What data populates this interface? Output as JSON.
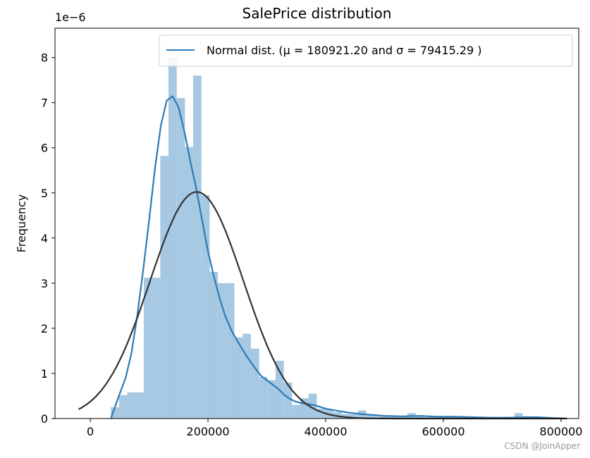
{
  "chart_data": {
    "type": "histogram",
    "title": "SalePrice distribution",
    "xlabel": "",
    "ylabel": "Frequency",
    "y_scale_label": "1e−6",
    "xlim": [
      -60000,
      830000
    ],
    "ylim": [
      0,
      8.65
    ],
    "x_ticks": [
      0,
      200000,
      400000,
      600000,
      800000
    ],
    "x_tick_labels": [
      "0",
      "200000",
      "400000",
      "600000",
      "800000"
    ],
    "y_ticks": [
      0,
      1,
      2,
      3,
      4,
      5,
      6,
      7,
      8
    ],
    "y_tick_labels": [
      "0",
      "1",
      "2",
      "3",
      "4",
      "5",
      "6",
      "7",
      "8"
    ],
    "grid": false,
    "legend": {
      "position": "top-right",
      "entries": [
        "Normal dist. (μ =  180921.20 and σ =  79415.29 )"
      ]
    },
    "histogram": {
      "bin_width": 14000,
      "bins": [
        [
          34900,
          0.25
        ],
        [
          48900,
          0.52
        ],
        [
          62900,
          0.58
        ],
        [
          76900,
          0.58
        ],
        [
          90900,
          3.12
        ],
        [
          104900,
          3.12
        ],
        [
          118900,
          5.82
        ],
        [
          132900,
          8.0
        ],
        [
          146900,
          7.1
        ],
        [
          160900,
          6.02
        ],
        [
          174900,
          7.6
        ],
        [
          188900,
          4.95
        ],
        [
          202900,
          3.25
        ],
        [
          216900,
          3.0
        ],
        [
          230900,
          3.0
        ],
        [
          244900,
          1.8
        ],
        [
          258900,
          1.88
        ],
        [
          272900,
          1.55
        ],
        [
          286900,
          0.92
        ],
        [
          300900,
          0.85
        ],
        [
          314900,
          1.28
        ],
        [
          328900,
          0.8
        ],
        [
          342900,
          0.3
        ],
        [
          356900,
          0.45
        ],
        [
          370900,
          0.55
        ],
        [
          384900,
          0.22
        ],
        [
          398900,
          0.2
        ],
        [
          412900,
          0.14
        ],
        [
          426900,
          0.1
        ],
        [
          440900,
          0.1
        ],
        [
          454900,
          0.18
        ],
        [
          468900,
          0.08
        ],
        [
          482900,
          0.05
        ],
        [
          496900,
          0.05
        ],
        [
          510900,
          0.05
        ],
        [
          524900,
          0.05
        ],
        [
          538900,
          0.12
        ],
        [
          552900,
          0.05
        ],
        [
          566900,
          0.03
        ],
        [
          580900,
          0.05
        ],
        [
          594900,
          0.05
        ],
        [
          608900,
          0.05
        ],
        [
          622900,
          0.03
        ],
        [
          636900,
          0.03
        ],
        [
          650900,
          0.03
        ],
        [
          664900,
          0.03
        ],
        [
          678900,
          0.03
        ],
        [
          692900,
          0.03
        ],
        [
          706900,
          0.03
        ],
        [
          720900,
          0.12
        ],
        [
          734900,
          0.05
        ],
        [
          748900,
          0.03
        ]
      ],
      "color": "#a6c8e2"
    },
    "series": [
      {
        "kind": "kde",
        "color": "#2c7bb6",
        "points": [
          [
            35000,
            0.0
          ],
          [
            50000,
            0.55
          ],
          [
            60000,
            0.9
          ],
          [
            70000,
            1.45
          ],
          [
            80000,
            2.3
          ],
          [
            90000,
            3.3
          ],
          [
            100000,
            4.4
          ],
          [
            110000,
            5.55
          ],
          [
            120000,
            6.5
          ],
          [
            130000,
            7.05
          ],
          [
            140000,
            7.14
          ],
          [
            150000,
            6.9
          ],
          [
            160000,
            6.35
          ],
          [
            170000,
            5.7
          ],
          [
            180000,
            5.1
          ],
          [
            190000,
            4.4
          ],
          [
            200000,
            3.7
          ],
          [
            210000,
            3.15
          ],
          [
            220000,
            2.65
          ],
          [
            230000,
            2.25
          ],
          [
            240000,
            1.95
          ],
          [
            250000,
            1.72
          ],
          [
            260000,
            1.5
          ],
          [
            270000,
            1.3
          ],
          [
            280000,
            1.12
          ],
          [
            290000,
            0.95
          ],
          [
            300000,
            0.85
          ],
          [
            310000,
            0.75
          ],
          [
            320000,
            0.65
          ],
          [
            330000,
            0.52
          ],
          [
            340000,
            0.43
          ],
          [
            350000,
            0.37
          ],
          [
            360000,
            0.34
          ],
          [
            370000,
            0.32
          ],
          [
            380000,
            0.3
          ],
          [
            390000,
            0.26
          ],
          [
            400000,
            0.22
          ],
          [
            420000,
            0.17
          ],
          [
            440000,
            0.13
          ],
          [
            460000,
            0.1
          ],
          [
            480000,
            0.08
          ],
          [
            500000,
            0.06
          ],
          [
            530000,
            0.05
          ],
          [
            560000,
            0.06
          ],
          [
            590000,
            0.04
          ],
          [
            620000,
            0.04
          ],
          [
            650000,
            0.03
          ],
          [
            680000,
            0.02
          ],
          [
            710000,
            0.02
          ],
          [
            740000,
            0.03
          ],
          [
            760000,
            0.03
          ],
          [
            790000,
            0.01
          ],
          [
            810000,
            0.0
          ]
        ]
      },
      {
        "kind": "normal",
        "color": "#333333",
        "mu": 180921.2,
        "sigma": 79415.29,
        "x_range": [
          -20000,
          810000
        ]
      }
    ]
  },
  "watermark": "CSDN @JoinApper"
}
